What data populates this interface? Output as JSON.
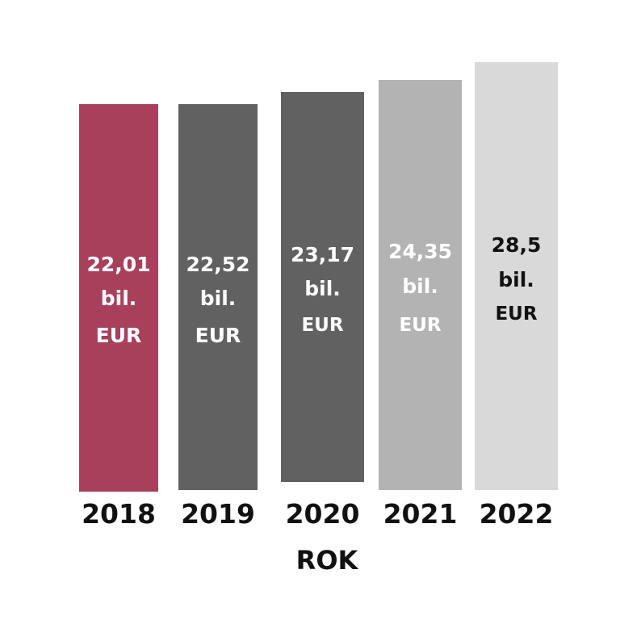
{
  "chart_data": {
    "type": "bar",
    "title": "",
    "xlabel": "ROK",
    "ylabel": "",
    "categories": [
      "2018",
      "2019",
      "2020",
      "2021",
      "2022"
    ],
    "values": [
      22.01,
      22.52,
      23.17,
      24.35,
      28.5
    ],
    "unit_line1": "bil.",
    "unit_line2": "EUR",
    "data_labels": [
      "22,01",
      "22,52",
      "23,17",
      "24,35",
      "28,5"
    ],
    "bar_colors": [
      "#a8405c",
      "#616161",
      "#616161",
      "#b3b3b3",
      "#d9d9d9"
    ],
    "label_colors": [
      "#ffffff",
      "#ffffff",
      "#ffffff",
      "#ffffff",
      "#111111"
    ],
    "grid": false,
    "legend": "none"
  }
}
